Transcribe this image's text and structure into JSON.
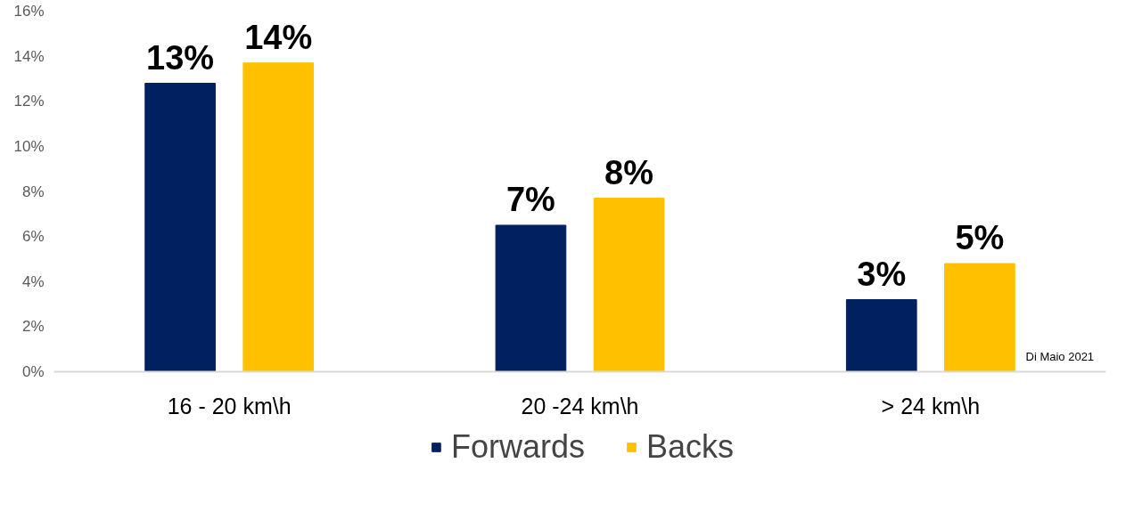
{
  "chart_data": {
    "type": "bar",
    "categories": [
      "16 - 20 km\\h",
      "20 -24 km\\h",
      "> 24 km\\h"
    ],
    "series": [
      {
        "name": "Forwards",
        "color": "#002060",
        "values": [
          12.8,
          6.5,
          3.2
        ],
        "value_labels": [
          "13%",
          "7%",
          "3%"
        ]
      },
      {
        "name": "Backs",
        "color": "#ffc000",
        "values": [
          13.7,
          7.7,
          4.8
        ],
        "value_labels": [
          "14%",
          "8%",
          "5%"
        ]
      }
    ],
    "ylim": [
      0,
      16
    ],
    "yticks": [
      {
        "value": 0,
        "label": "0%"
      },
      {
        "value": 2,
        "label": "2%"
      },
      {
        "value": 4,
        "label": "4%"
      },
      {
        "value": 6,
        "label": "6%"
      },
      {
        "value": 8,
        "label": "8%"
      },
      {
        "value": 10,
        "label": "10%"
      },
      {
        "value": 12,
        "label": "12%"
      },
      {
        "value": 14,
        "label": "14%"
      },
      {
        "value": 16,
        "label": "16%"
      }
    ],
    "grid": false,
    "legend": "bottom",
    "annotations": [
      "Di Maio 2021"
    ]
  }
}
